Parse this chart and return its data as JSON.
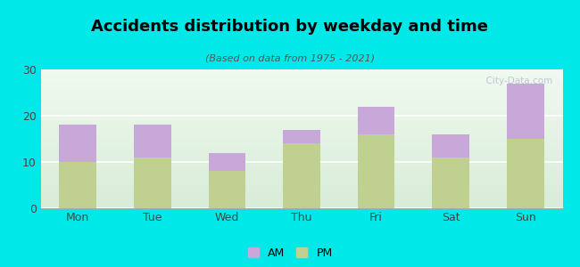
{
  "categories": [
    "Mon",
    "Tue",
    "Wed",
    "Thu",
    "Fri",
    "Sat",
    "Sun"
  ],
  "pm_values": [
    10,
    11,
    8,
    14,
    16,
    11,
    15
  ],
  "am_values": [
    8,
    7,
    4,
    3,
    6,
    5,
    12
  ],
  "am_color": "#c8a8d8",
  "pm_color": "#c0d090",
  "title": "Accidents distribution by weekday and time",
  "subtitle": "(Based on data from 1975 - 2021)",
  "ylim": [
    0,
    30
  ],
  "yticks": [
    0,
    10,
    20,
    30
  ],
  "background_color": "#00e8e8",
  "plot_bg_top": "#e8f5e8",
  "plot_bg_bottom": "#f8fff8",
  "bar_width": 0.5,
  "watermark": "  City-Data.com"
}
